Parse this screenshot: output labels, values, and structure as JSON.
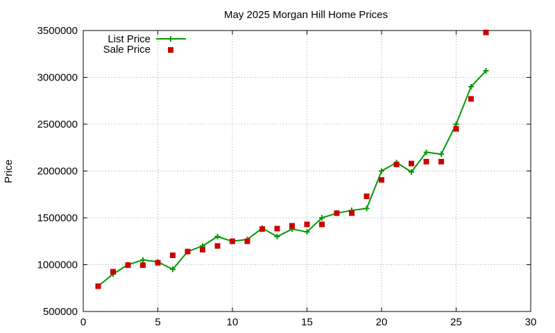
{
  "colors": {
    "list_price": "#009900",
    "sale_price": "#cc0000",
    "grid": "#a0a0a0",
    "axis": "#000000"
  },
  "chart_data": {
    "type": "line",
    "title": "May 2025 Morgan Hill Home Prices",
    "xlabel": "",
    "ylabel": "Price",
    "xlim": [
      0,
      30
    ],
    "ylim": [
      500000,
      3500000
    ],
    "xticks": [
      0,
      5,
      10,
      15,
      20,
      25,
      30
    ],
    "yticks": [
      500000,
      1000000,
      1500000,
      2000000,
      2500000,
      3000000,
      3500000
    ],
    "grid": true,
    "legend_position": "top-left",
    "series": [
      {
        "name": "List Price",
        "style": "line+cross",
        "color": "#009900",
        "x": [
          1,
          2,
          3,
          4,
          5,
          6,
          7,
          8,
          9,
          10,
          11,
          12,
          13,
          14,
          15,
          16,
          17,
          18,
          19,
          20,
          21,
          22,
          23,
          24,
          25,
          26,
          27
        ],
        "y": [
          770000,
          900000,
          1000000,
          1050000,
          1030000,
          950000,
          1140000,
          1200000,
          1300000,
          1250000,
          1270000,
          1390000,
          1300000,
          1380000,
          1350000,
          1500000,
          1550000,
          1580000,
          1600000,
          2000000,
          2090000,
          1990000,
          2200000,
          2180000,
          2500000,
          2900000,
          3070000
        ]
      },
      {
        "name": "Sale Price",
        "style": "square",
        "color": "#cc0000",
        "x": [
          1,
          2,
          3,
          4,
          5,
          6,
          7,
          8,
          9,
          10,
          11,
          12,
          13,
          14,
          15,
          16,
          17,
          18,
          19,
          20,
          21,
          22,
          23,
          24,
          25,
          26,
          27
        ],
        "y": [
          770000,
          925000,
          995000,
          995000,
          1020000,
          1100000,
          1140000,
          1160000,
          1200000,
          1250000,
          1250000,
          1380000,
          1385000,
          1415000,
          1430000,
          1430000,
          1550000,
          1550000,
          1730000,
          1905000,
          2070000,
          2080000,
          2100000,
          2100000,
          2450000,
          2770000,
          3480000
        ]
      }
    ]
  }
}
